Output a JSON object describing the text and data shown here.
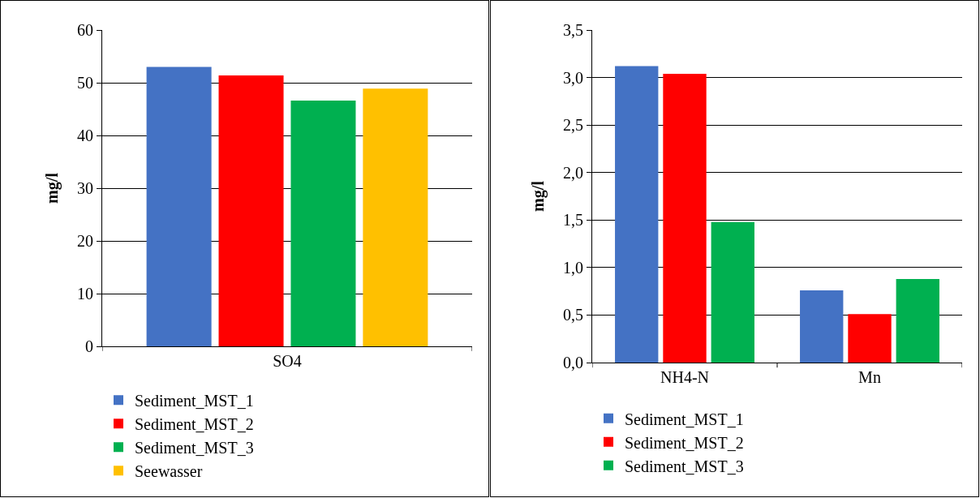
{
  "chart_data": [
    {
      "type": "bar",
      "ylabel": "mg/l",
      "categories": [
        "SO4"
      ],
      "ylim": [
        0,
        60
      ],
      "yticks": [
        0,
        10,
        20,
        30,
        40,
        50,
        60
      ],
      "grid": "y",
      "legend": "bottom",
      "series": [
        {
          "name": "Sediment_MST_1",
          "color": "#4472c4",
          "values": [
            53.0
          ]
        },
        {
          "name": "Sediment_MST_2",
          "color": "#ff0000",
          "values": [
            51.4
          ]
        },
        {
          "name": "Sediment_MST_3",
          "color": "#00b050",
          "values": [
            46.6
          ]
        },
        {
          "name": "Seewasser",
          "color": "#ffc000",
          "values": [
            48.9
          ]
        }
      ]
    },
    {
      "type": "bar",
      "ylabel": "mg/l",
      "categories": [
        "NH4-N",
        "Mn"
      ],
      "ylim": [
        0,
        3.5
      ],
      "yticks": [
        {
          "value": 0,
          "label": "0,0"
        },
        {
          "value": 0.5,
          "label": "0,5"
        },
        {
          "value": 1,
          "label": "1,0"
        },
        {
          "value": 1.5,
          "label": "1,5"
        },
        {
          "value": 2,
          "label": "2,0"
        },
        {
          "value": 2.5,
          "label": "2,5"
        },
        {
          "value": 3,
          "label": "3,0"
        },
        {
          "value": 3.5,
          "label": "3,5"
        }
      ],
      "grid": "y",
      "legend": "bottom",
      "series": [
        {
          "name": "Sediment_MST_1",
          "color": "#4472c4",
          "values": [
            3.12,
            0.76
          ]
        },
        {
          "name": "Sediment_MST_2",
          "color": "#ff0000",
          "values": [
            3.04,
            0.51
          ]
        },
        {
          "name": "Sediment_MST_3",
          "color": "#00b050",
          "values": [
            1.48,
            0.88
          ]
        }
      ]
    }
  ]
}
